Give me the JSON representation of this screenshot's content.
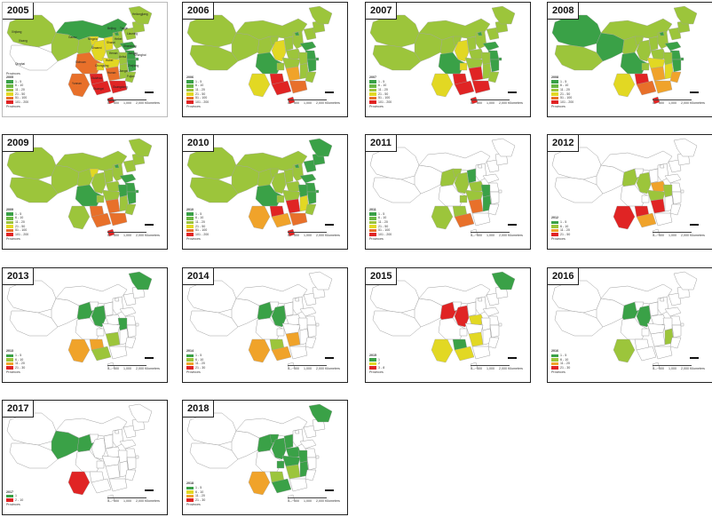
{
  "colors": {
    "dkgreen": "#3aa147",
    "green": "#6ab744",
    "lgreen": "#9cc53b",
    "yellow": "#e2d823",
    "orange": "#f0a32a",
    "dorange": "#e8702a",
    "red": "#e02424",
    "border": "#a0a0a0"
  },
  "scale_ticks": [
    "0",
    "500",
    "1,000",
    "2,000 Kilometers"
  ],
  "panels": [
    {
      "year": "2005",
      "legend_year": "2005",
      "legend_title": "Provinces",
      "labels": [
        "1 - 5",
        "6 - 10",
        "11 - 20",
        "21 - 50",
        "51 - 100",
        "101 - 200"
      ],
      "colors": [
        "dkgreen",
        "green",
        "lgreen",
        "yellow",
        "dorange",
        "red"
      ],
      "caption": "Provinces",
      "province_labels": [
        "Xinjiang",
        "Qinghai",
        "Xizang",
        "Heilongjiang",
        "Liaoning",
        "Beijing",
        "Tianjin",
        "Shanxi",
        "Shandong",
        "Henan",
        "Shaanxi",
        "Hubei",
        "Anhui",
        "Jiangsu",
        "Sichuan",
        "Chongqing",
        "Hunan",
        "Jiangxi",
        "Zhejiang",
        "Fujian",
        "Yunnan",
        "Guizhou",
        "Guangxi",
        "Guangdong",
        "Hainan",
        "Hebei",
        "Gansu",
        "Ningxia",
        "Shanghai"
      ]
    },
    {
      "year": "2006",
      "legend_year": "2006",
      "labels": [
        "1 - 5",
        "6 - 10",
        "11 - 20",
        "21 - 50",
        "51 - 100",
        "101 - 200"
      ],
      "colors": [
        "dkgreen",
        "green",
        "lgreen",
        "yellow",
        "dorange",
        "red"
      ],
      "caption": "Provinces"
    },
    {
      "year": "2007",
      "legend_year": "2007",
      "labels": [
        "1 - 5",
        "6 - 10",
        "11 - 20",
        "21 - 50",
        "51 - 100",
        "101 - 200"
      ],
      "colors": [
        "dkgreen",
        "green",
        "lgreen",
        "yellow",
        "dorange",
        "red"
      ],
      "caption": "Provinces"
    },
    {
      "year": "2008",
      "legend_year": "2008",
      "labels": [
        "1 - 5",
        "6 - 10",
        "11 - 20",
        "21 - 50",
        "51 - 100",
        "101 - 200"
      ],
      "colors": [
        "dkgreen",
        "green",
        "lgreen",
        "yellow",
        "dorange",
        "red"
      ],
      "caption": "Provinces"
    },
    {
      "year": "2009",
      "legend_year": "2009",
      "labels": [
        "1 - 5",
        "6 - 10",
        "11 - 20",
        "21 - 50",
        "51 - 100",
        "101 - 200"
      ],
      "colors": [
        "dkgreen",
        "green",
        "lgreen",
        "yellow",
        "dorange",
        "red"
      ],
      "caption": "Provinces"
    },
    {
      "year": "2010",
      "legend_year": "2010",
      "labels": [
        "1 - 5",
        "6 - 10",
        "11 - 20",
        "21 - 50",
        "51 - 100",
        "101 - 200"
      ],
      "colors": [
        "dkgreen",
        "green",
        "lgreen",
        "yellow",
        "dorange",
        "red"
      ],
      "caption": "Provinces"
    },
    {
      "year": "2011",
      "legend_year": "2011",
      "labels": [
        "1 - 5",
        "6 - 10",
        "11 - 20",
        "21 - 50",
        "51 - 100",
        "101 - 200"
      ],
      "colors": [
        "dkgreen",
        "green",
        "lgreen",
        "yellow",
        "dorange",
        "red"
      ],
      "caption": "Provinces"
    },
    {
      "year": "2012",
      "legend_year": "2012",
      "labels": [
        "1 - 5",
        "6 - 10",
        "11 - 20",
        "21 - 50"
      ],
      "colors": [
        "dkgreen",
        "lgreen",
        "orange",
        "red"
      ],
      "caption": "Provinces"
    },
    {
      "year": "2013",
      "legend_year": "2013",
      "labels": [
        "1 - 5",
        "6 - 10",
        "11 - 20",
        "21 - 30"
      ],
      "colors": [
        "dkgreen",
        "lgreen",
        "orange",
        "red"
      ],
      "caption": "Provinces"
    },
    {
      "year": "2014",
      "legend_year": "2014",
      "labels": [
        "1 - 5",
        "6 - 10",
        "11 - 20",
        "21 - 30"
      ],
      "colors": [
        "dkgreen",
        "lgreen",
        "orange",
        "red"
      ],
      "caption": "Provinces"
    },
    {
      "year": "2015",
      "legend_year": "2015",
      "labels": [
        "1",
        "2",
        "3 - 8"
      ],
      "colors": [
        "dkgreen",
        "yellow",
        "red"
      ],
      "caption": "Provinces"
    },
    {
      "year": "2016",
      "legend_year": "2016",
      "labels": [
        "1 - 5",
        "6 - 10",
        "11 - 20",
        "21 - 30"
      ],
      "colors": [
        "dkgreen",
        "lgreen",
        "orange",
        "red"
      ],
      "caption": "Provinces"
    },
    {
      "year": "2017",
      "legend_year": "2017",
      "labels": [
        "1",
        "2 - 10"
      ],
      "colors": [
        "dkgreen",
        "red"
      ],
      "caption": "Provinces"
    },
    {
      "year": "2018",
      "legend_year": "2018",
      "labels": [
        "1 - 5",
        "6 - 10",
        "11 - 20",
        "21 - 30"
      ],
      "colors": [
        "dkgreen",
        "yellow",
        "orange",
        "red"
      ],
      "caption": "Provinces"
    }
  ]
}
